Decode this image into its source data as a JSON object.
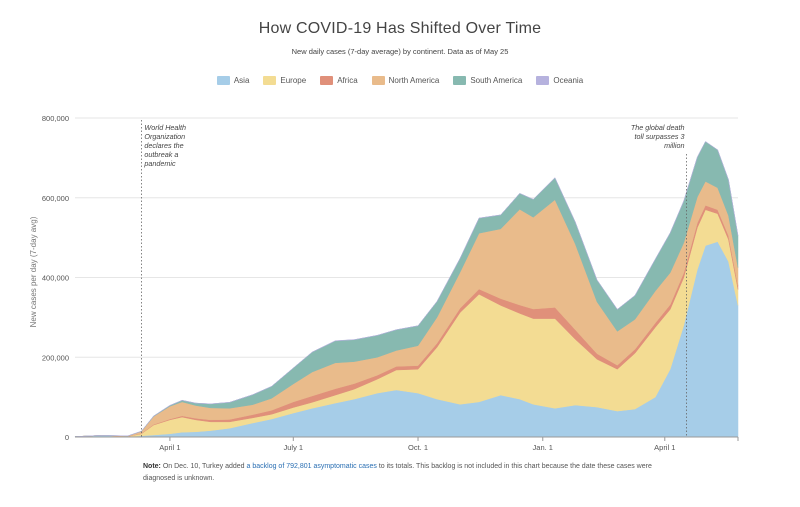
{
  "title": "How COVID-19 Has Shifted Over Time",
  "subtitle": "New daily cases (7-day average) by continent. Data as of May 25",
  "legend": [
    {
      "name": "Asia",
      "color": "#a6cde8"
    },
    {
      "name": "Europe",
      "color": "#f3dc93"
    },
    {
      "name": "Africa",
      "color": "#e0907a"
    },
    {
      "name": "North America",
      "color": "#e9bb8b"
    },
    {
      "name": "South America",
      "color": "#87b9b0"
    },
    {
      "name": "Oceania",
      "color": "#b6b2de"
    }
  ],
  "annotations": {
    "who": "World Health Organization declares the outbreak a pandemic",
    "death": "The global death toll surpasses 3 million"
  },
  "note": {
    "label": "Note:",
    "before": "On Dec. 10, Turkey added",
    "link": "a backlog of 792,801 asymptomatic cases",
    "after": "to its totals. This backlog is not included in this chart because the date these cases were diagnosed is unknown."
  },
  "chart_data": {
    "type": "area",
    "ylabel": "New cases per day (7-day avg)",
    "ylim": [
      0,
      800000
    ],
    "yticks": [
      0,
      200000,
      400000,
      600000,
      800000
    ],
    "ytick_labels": [
      "0",
      "200,000",
      "400,000",
      "600,000",
      "800,000"
    ],
    "xtick_labels": [
      "April 1",
      "July 1",
      "Oct. 1",
      "Jan. 1",
      "April 1"
    ],
    "xtick_dates": [
      "2020-04-01",
      "2020-07-01",
      "2020-10-01",
      "2021-01-01",
      "2021-04-01"
    ],
    "xlim": [
      "2020-01-22",
      "2021-05-25"
    ],
    "x": [
      "2020-01-22",
      "2020-02-10",
      "2020-03-01",
      "2020-03-11",
      "2020-03-20",
      "2020-04-01",
      "2020-04-10",
      "2020-04-20",
      "2020-05-01",
      "2020-05-15",
      "2020-06-01",
      "2020-06-15",
      "2020-07-01",
      "2020-07-15",
      "2020-08-01",
      "2020-08-15",
      "2020-09-01",
      "2020-09-15",
      "2020-10-01",
      "2020-10-15",
      "2020-11-01",
      "2020-11-15",
      "2020-12-01",
      "2020-12-15",
      "2020-12-25",
      "2021-01-10",
      "2021-01-25",
      "2021-02-10",
      "2021-02-25",
      "2021-03-10",
      "2021-03-25",
      "2021-04-05",
      "2021-04-15",
      "2021-04-25",
      "2021-05-01",
      "2021-05-10",
      "2021-05-18",
      "2021-05-25"
    ],
    "series": [
      {
        "name": "Asia",
        "values": [
          1000,
          4000,
          1000,
          3000,
          5000,
          8000,
          12000,
          13000,
          16000,
          22000,
          35000,
          45000,
          60000,
          72000,
          85000,
          95000,
          110000,
          118000,
          110000,
          95000,
          82000,
          88000,
          105000,
          95000,
          82000,
          72000,
          80000,
          75000,
          65000,
          70000,
          100000,
          170000,
          280000,
          420000,
          480000,
          490000,
          440000,
          330000
        ]
      },
      {
        "name": "Europe",
        "values": [
          0,
          0,
          500,
          5000,
          25000,
          35000,
          38000,
          30000,
          22000,
          16000,
          13000,
          12000,
          14000,
          15000,
          20000,
          25000,
          35000,
          50000,
          60000,
          130000,
          230000,
          270000,
          225000,
          215000,
          215000,
          225000,
          165000,
          120000,
          105000,
          140000,
          175000,
          150000,
          120000,
          105000,
          90000,
          70000,
          55000,
          40000
        ]
      },
      {
        "name": "Africa",
        "values": [
          0,
          0,
          200,
          1000,
          1500,
          2000,
          3000,
          4000,
          5000,
          6000,
          8000,
          10000,
          14000,
          16000,
          16000,
          14000,
          10000,
          9000,
          9000,
          10000,
          11000,
          13000,
          17000,
          21000,
          24000,
          28000,
          24000,
          14000,
          10000,
          10000,
          11000,
          12000,
          12000,
          12000,
          11000,
          10000,
          10000,
          10000
        ]
      },
      {
        "name": "North America",
        "values": [
          0,
          0,
          1000,
          5000,
          20000,
          32000,
          35000,
          32000,
          30000,
          28000,
          25000,
          30000,
          45000,
          60000,
          65000,
          55000,
          45000,
          40000,
          50000,
          65000,
          90000,
          140000,
          175000,
          240000,
          230000,
          270000,
          215000,
          130000,
          85000,
          75000,
          80000,
          80000,
          75000,
          65000,
          60000,
          55000,
          50000,
          45000
        ]
      },
      {
        "name": "South America",
        "values": [
          0,
          0,
          100,
          500,
          1000,
          2000,
          4000,
          6000,
          10000,
          15000,
          25000,
          30000,
          40000,
          50000,
          55000,
          55000,
          55000,
          52000,
          50000,
          40000,
          35000,
          38000,
          35000,
          40000,
          45000,
          55000,
          55000,
          55000,
          55000,
          60000,
          80000,
          100000,
          105000,
          100000,
          100000,
          95000,
          90000,
          80000
        ]
      },
      {
        "name": "Oceania",
        "values": [
          0,
          0,
          100,
          200,
          300,
          500,
          200,
          100,
          50,
          50,
          50,
          50,
          100,
          300,
          500,
          300,
          100,
          50,
          50,
          50,
          50,
          50,
          50,
          50,
          50,
          50,
          50,
          50,
          50,
          50,
          50,
          50,
          50,
          50,
          50,
          50,
          50,
          50
        ]
      }
    ]
  }
}
